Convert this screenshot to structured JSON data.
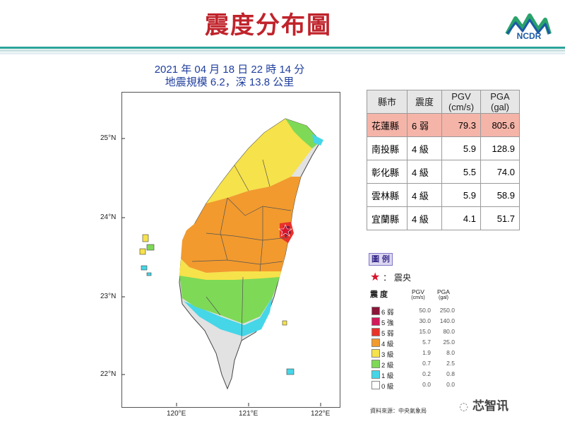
{
  "title": "震度分布圖",
  "logo": {
    "text": "NCDR"
  },
  "subtitle": {
    "line1": "2021 年 04 月 18 日 22 時 14 分",
    "line2": "地震規模 6.2，深 13.8 公里"
  },
  "axes": {
    "lat_labels": [
      "25°N",
      "24°N",
      "23°N",
      "22°N"
    ],
    "lon_labels": [
      "120°E",
      "121°E",
      "122°E"
    ]
  },
  "table": {
    "headers": [
      "縣市",
      "震度",
      "PGV\n(cm/s)",
      "PGA\n(gal)"
    ],
    "header_h1": "縣市",
    "header_h2": "震度",
    "header_h3a": "PGV",
    "header_h3b": "(cm/s)",
    "header_h4a": "PGA",
    "header_h4b": "(gal)",
    "rows": [
      {
        "county": "花蓮縣",
        "intensity": "6 弱",
        "pgv": "79.3",
        "pga": "805.6"
      },
      {
        "county": "南投縣",
        "intensity": "4 級",
        "pgv": "5.9",
        "pga": "128.9"
      },
      {
        "county": "彰化縣",
        "intensity": "4 級",
        "pgv": "5.5",
        "pga": "74.0"
      },
      {
        "county": "雲林縣",
        "intensity": "4 級",
        "pgv": "5.9",
        "pga": "58.9"
      },
      {
        "county": "宜蘭縣",
        "intensity": "4 級",
        "pgv": "4.1",
        "pga": "51.7"
      }
    ]
  },
  "legend": {
    "tag": "圖 例",
    "epicenter_label": "：  震央",
    "col_intensity": "震 度",
    "col_pgv": "PGV",
    "col_pgv_unit": "(cm/s)",
    "col_pga": "PGA",
    "col_pga_unit": "(gal)",
    "levels": [
      {
        "label": "6 弱",
        "pgv": "50.0",
        "pga": "250.0",
        "color": "#8a1538"
      },
      {
        "label": "5 強",
        "pgv": "30.0",
        "pga": "140.0",
        "color": "#d21a5a"
      },
      {
        "label": "5 弱",
        "pgv": "15.0",
        "pga": "80.0",
        "color": "#e8322a"
      },
      {
        "label": "4 級",
        "pgv": "5.7",
        "pga": "25.0",
        "color": "#f29a2e"
      },
      {
        "label": "3 級",
        "pgv": "1.9",
        "pga": "8.0",
        "color": "#f6e24a"
      },
      {
        "label": "2 級",
        "pgv": "0.7",
        "pga": "2.5",
        "color": "#7ed957"
      },
      {
        "label": "1 級",
        "pgv": "0.2",
        "pga": "0.8",
        "color": "#45d6e8"
      },
      {
        "label": "0 級",
        "pgv": "0.0",
        "pga": "0.0",
        "color": "#ffffff"
      }
    ]
  },
  "source": "資料來源：中央氣象局",
  "watermark": "芯智讯",
  "colors": {
    "title": "#c0232b",
    "subtitle": "#1f3e9e",
    "highlight_row": "#f5b4a8",
    "epicenter": "#d6142b"
  }
}
